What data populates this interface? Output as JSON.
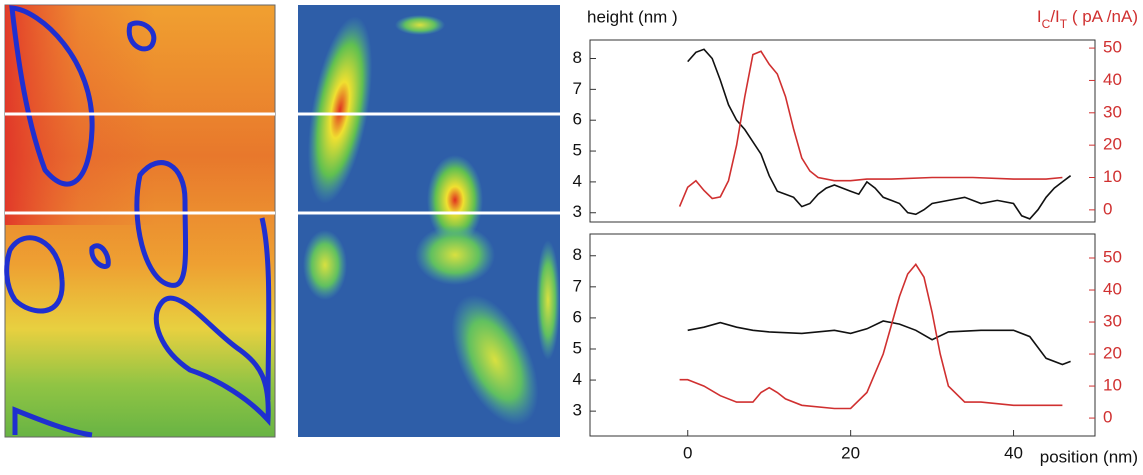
{
  "chart_data": [
    {
      "type": "line",
      "ylabel": "height (nm )",
      "y2label": [
        "I",
        "C",
        "/I",
        "T",
        " ( pA /nA)"
      ],
      "xlim": [
        -12,
        50
      ],
      "ylim": [
        2.7,
        8.6
      ],
      "yticks": [
        3,
        4,
        5,
        6,
        7,
        8
      ],
      "y2lim": [
        -3.75,
        52.5
      ],
      "y2ticks": [
        0,
        10,
        20,
        30,
        40,
        50
      ],
      "series": [
        {
          "color": "#111111",
          "axis": "y",
          "x": [
            0,
            1,
            2,
            3,
            4,
            5,
            6,
            7,
            8,
            9,
            10,
            11,
            12,
            13,
            14,
            15,
            16,
            17,
            18,
            19,
            20,
            21,
            22,
            23,
            24,
            25,
            26,
            27,
            28,
            29,
            30,
            32,
            34,
            36,
            38,
            40,
            41,
            42,
            43,
            44,
            45,
            46,
            47
          ],
          "values": [
            7.9,
            8.2,
            8.3,
            8.0,
            7.3,
            6.5,
            6.0,
            5.7,
            5.3,
            4.9,
            4.2,
            3.7,
            3.6,
            3.5,
            3.2,
            3.3,
            3.6,
            3.8,
            3.9,
            3.8,
            3.7,
            3.6,
            4.0,
            3.8,
            3.5,
            3.4,
            3.3,
            3.0,
            2.95,
            3.1,
            3.3,
            3.4,
            3.5,
            3.3,
            3.4,
            3.3,
            2.9,
            2.8,
            3.1,
            3.5,
            3.8,
            4.0,
            4.2
          ]
        },
        {
          "color": "#d03030",
          "axis": "y2",
          "x": [
            -1,
            0,
            1,
            2,
            3,
            4,
            5,
            6,
            7,
            8,
            9,
            10,
            11,
            12,
            13,
            14,
            15,
            16,
            18,
            20,
            22,
            25,
            30,
            35,
            40,
            44,
            46
          ],
          "values": [
            1,
            7,
            9,
            6,
            3.5,
            4,
            9,
            20,
            35,
            48,
            49,
            45,
            42,
            35,
            25,
            16,
            12,
            10,
            9,
            9,
            9.5,
            9.5,
            10,
            10,
            9.5,
            9.5,
            10
          ]
        }
      ]
    },
    {
      "type": "line",
      "xlabel": "position (nm)",
      "xlim": [
        -12,
        50
      ],
      "xticks": [
        0,
        20,
        40
      ],
      "ylim": [
        2.2,
        8.7
      ],
      "yticks": [
        3,
        4,
        5,
        6,
        7,
        8
      ],
      "y2lim": [
        -5.6,
        57.5
      ],
      "y2ticks": [
        0,
        10,
        20,
        30,
        40,
        50
      ],
      "series": [
        {
          "color": "#111111",
          "axis": "y",
          "x": [
            0,
            2,
            4,
            6,
            8,
            10,
            14,
            18,
            20,
            22,
            24,
            26,
            28,
            30,
            32,
            36,
            40,
            42,
            44,
            46,
            47
          ],
          "values": [
            5.6,
            5.7,
            5.85,
            5.7,
            5.6,
            5.55,
            5.5,
            5.6,
            5.5,
            5.65,
            5.9,
            5.8,
            5.6,
            5.3,
            5.55,
            5.6,
            5.6,
            5.4,
            4.7,
            4.5,
            4.6
          ]
        },
        {
          "color": "#d03030",
          "axis": "y2",
          "x": [
            -1,
            0,
            2,
            4,
            6,
            8,
            9,
            10,
            11,
            12,
            14,
            18,
            20,
            22,
            24,
            26,
            27,
            28,
            29,
            30,
            31,
            32,
            34,
            36,
            40,
            46
          ],
          "values": [
            12,
            12,
            10,
            7,
            5,
            5,
            8,
            9.5,
            8,
            6,
            4,
            3,
            3,
            8,
            20,
            38,
            45,
            48,
            44,
            33,
            20,
            10,
            5,
            5,
            4,
            4
          ]
        }
      ]
    }
  ]
}
